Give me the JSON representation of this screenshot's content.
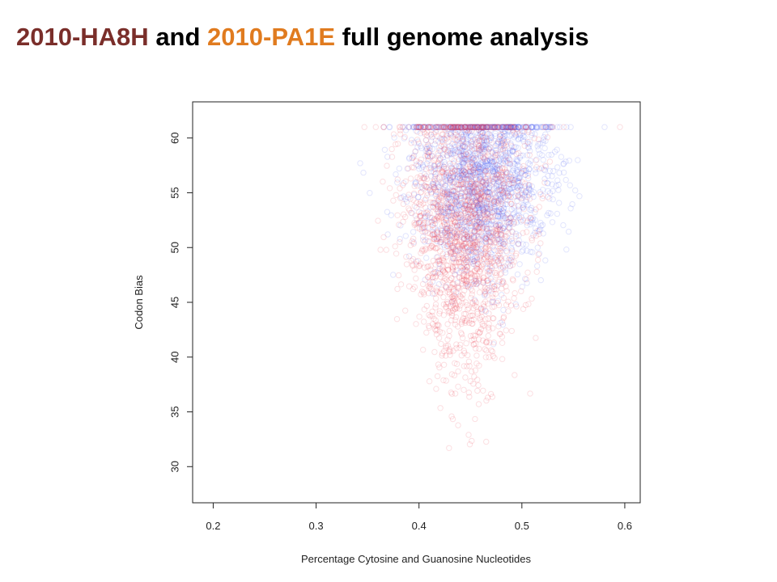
{
  "slide": {
    "title_parts": [
      {
        "text": "2010-HA8H",
        "color": "#7a2e2a"
      },
      {
        "text": " and ",
        "color": "#000000"
      },
      {
        "text": "2010-PA1E",
        "color": "#e07b1f"
      },
      {
        "text": " full genome analysis",
        "color": "#000000"
      }
    ]
  },
  "chart_data": {
    "type": "scatter",
    "title": "",
    "xlabel": "Percentage Cytosine and Guanosine Nucleotides",
    "ylabel": "Codon Bias",
    "xlim": [
      0.18,
      0.615
    ],
    "ylim": [
      26.7,
      63.3
    ],
    "xticks": [
      0.2,
      0.3,
      0.4,
      0.5,
      0.6
    ],
    "xtick_labels": [
      "0.2",
      "0.3",
      "0.4",
      "0.5",
      "0.6"
    ],
    "yticks": [
      30,
      35,
      40,
      45,
      50,
      55,
      60
    ],
    "ytick_labels": [
      "30",
      "35",
      "40",
      "45",
      "50",
      "55",
      "60"
    ],
    "grid": false,
    "legend": "none",
    "marker": "open-circle",
    "series": [
      {
        "color": "#4a5cf0",
        "center_x": 0.46,
        "center_y": 56.5,
        "spread_x": 0.027,
        "spread_y": 4.5,
        "cap_y": 61.0
      },
      {
        "color": "#ee3a4a",
        "center_x": 0.445,
        "center_y": 52.0,
        "spread_x": 0.026,
        "spread_y": 6.5,
        "cap_y": 61.0
      }
    ]
  }
}
